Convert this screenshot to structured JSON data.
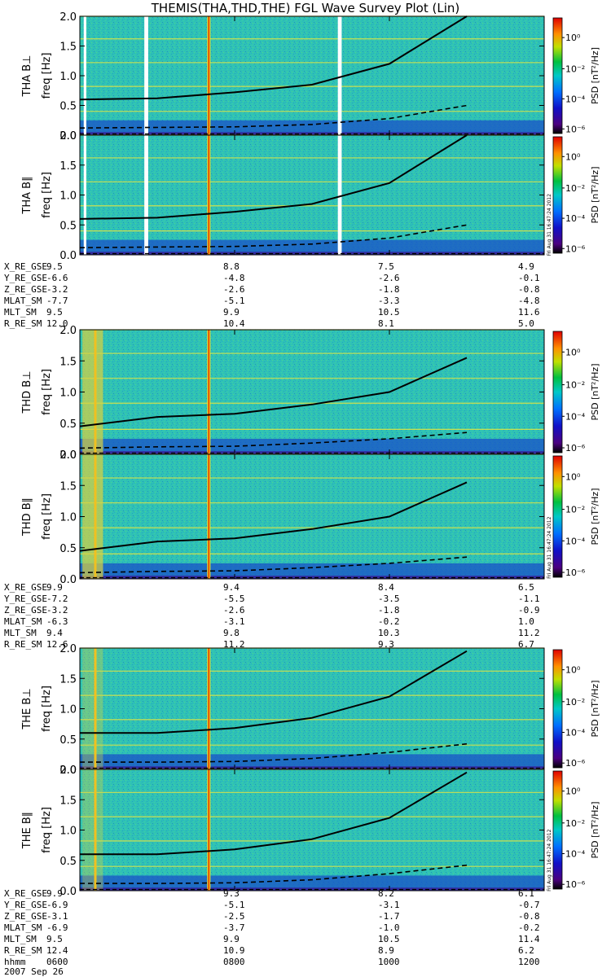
{
  "title": "THEMIS(THA,THD,THE) FGL Wave Survey Plot (Lin)",
  "colorbar": {
    "label": "PSD [nT²/Hz]",
    "ticks": [
      "10⁰",
      "10⁻²",
      "10⁻⁴",
      "10⁻⁶"
    ]
  },
  "freq_label": "freq [Hz]",
  "freq_ticks": [
    "0.0",
    "0.5",
    "1.0",
    "1.5",
    "2.0"
  ],
  "stamp": "Fri Aug 31 16:47:24 2012",
  "time_axis": {
    "label": "hhmm",
    "ticks": [
      "0600",
      "0800",
      "1000",
      "1200"
    ],
    "date": "2007 Sep 26"
  },
  "chart_data": [
    {
      "type": "heatmap",
      "name": "THA B⊥",
      "title": "THA B⊥",
      "ylabel": "freq [Hz]",
      "ylim": [
        0,
        2
      ],
      "x_range_hhmm": [
        "0600",
        "1200"
      ],
      "z_label": "PSD [nT²/Hz]",
      "z_range_log10": [
        -6,
        1
      ],
      "data_gaps_hhmm": [
        [
          "0603",
          "0605"
        ],
        [
          "0650",
          "0653"
        ],
        [
          "0920",
          "0923"
        ]
      ],
      "solid_line": [
        [
          0,
          0.6
        ],
        [
          1,
          0.62
        ],
        [
          2,
          0.72
        ],
        [
          3,
          0.85
        ],
        [
          4,
          1.2
        ],
        [
          5,
          2.0
        ]
      ],
      "dashed_line": [
        [
          0,
          0.12
        ],
        [
          1,
          0.13
        ],
        [
          2,
          0.14
        ],
        [
          3,
          0.18
        ],
        [
          4,
          0.28
        ],
        [
          5,
          0.5
        ]
      ]
    },
    {
      "type": "heatmap",
      "name": "THA B∥",
      "title": "THA B∥",
      "ylabel": "freq [Hz]",
      "ylim": [
        0,
        2
      ],
      "x_range_hhmm": [
        "0600",
        "1200"
      ],
      "z_label": "PSD [nT²/Hz]",
      "z_range_log10": [
        -6,
        1
      ],
      "data_gaps_hhmm": [
        [
          "0603",
          "0605"
        ],
        [
          "0650",
          "0653"
        ],
        [
          "0920",
          "0923"
        ]
      ],
      "solid_line": [
        [
          0,
          0.6
        ],
        [
          1,
          0.62
        ],
        [
          2,
          0.72
        ],
        [
          3,
          0.85
        ],
        [
          4,
          1.2
        ],
        [
          5,
          2.0
        ]
      ],
      "dashed_line": [
        [
          0,
          0.12
        ],
        [
          1,
          0.13
        ],
        [
          2,
          0.14
        ],
        [
          3,
          0.18
        ],
        [
          4,
          0.28
        ],
        [
          5,
          0.5
        ]
      ]
    },
    {
      "type": "heatmap",
      "name": "THD B⊥",
      "title": "THD B⊥",
      "ylabel": "freq [Hz]",
      "ylim": [
        0,
        2
      ],
      "x_range_hhmm": [
        "0600",
        "1200"
      ],
      "z_label": "PSD [nT²/Hz]",
      "z_range_log10": [
        -6,
        1
      ],
      "data_gaps_hhmm": [],
      "solid_line": [
        [
          0,
          0.45
        ],
        [
          1,
          0.6
        ],
        [
          2,
          0.65
        ],
        [
          3,
          0.8
        ],
        [
          4,
          1.0
        ],
        [
          5,
          1.55
        ]
      ],
      "dashed_line": [
        [
          0,
          0.1
        ],
        [
          1,
          0.12
        ],
        [
          2,
          0.13
        ],
        [
          3,
          0.18
        ],
        [
          4,
          0.25
        ],
        [
          5,
          0.35
        ]
      ]
    },
    {
      "type": "heatmap",
      "name": "THD B∥",
      "title": "THD B∥",
      "ylabel": "freq [Hz]",
      "ylim": [
        0,
        2
      ],
      "x_range_hhmm": [
        "0600",
        "1200"
      ],
      "z_label": "PSD [nT²/Hz]",
      "z_range_log10": [
        -6,
        1
      ],
      "data_gaps_hhmm": [],
      "solid_line": [
        [
          0,
          0.45
        ],
        [
          1,
          0.6
        ],
        [
          2,
          0.65
        ],
        [
          3,
          0.8
        ],
        [
          4,
          1.0
        ],
        [
          5,
          1.55
        ]
      ],
      "dashed_line": [
        [
          0,
          0.1
        ],
        [
          1,
          0.12
        ],
        [
          2,
          0.13
        ],
        [
          3,
          0.18
        ],
        [
          4,
          0.25
        ],
        [
          5,
          0.35
        ]
      ]
    },
    {
      "type": "heatmap",
      "name": "THE B⊥",
      "title": "THE B⊥",
      "ylabel": "freq [Hz]",
      "ylim": [
        0,
        2
      ],
      "x_range_hhmm": [
        "0600",
        "1200"
      ],
      "z_label": "PSD [nT²/Hz]",
      "z_range_log10": [
        -6,
        1
      ],
      "data_gaps_hhmm": [],
      "solid_line": [
        [
          0,
          0.6
        ],
        [
          1,
          0.6
        ],
        [
          2,
          0.68
        ],
        [
          3,
          0.85
        ],
        [
          4,
          1.2
        ],
        [
          5,
          1.95
        ]
      ],
      "dashed_line": [
        [
          0,
          0.12
        ],
        [
          1,
          0.12
        ],
        [
          2,
          0.13
        ],
        [
          3,
          0.18
        ],
        [
          4,
          0.28
        ],
        [
          5,
          0.42
        ]
      ]
    },
    {
      "type": "heatmap",
      "name": "THE B∥",
      "title": "THE B∥",
      "ylabel": "freq [Hz]",
      "ylim": [
        0,
        2
      ],
      "x_range_hhmm": [
        "0600",
        "1200"
      ],
      "z_label": "PSD [nT²/Hz]",
      "z_range_log10": [
        -6,
        1
      ],
      "data_gaps_hhmm": [],
      "solid_line": [
        [
          0,
          0.6
        ],
        [
          1,
          0.6
        ],
        [
          2,
          0.68
        ],
        [
          3,
          0.85
        ],
        [
          4,
          1.2
        ],
        [
          5,
          1.95
        ]
      ],
      "dashed_line": [
        [
          0,
          0.12
        ],
        [
          1,
          0.12
        ],
        [
          2,
          0.13
        ],
        [
          3,
          0.18
        ],
        [
          4,
          0.28
        ],
        [
          5,
          0.42
        ]
      ]
    }
  ],
  "ephemeris": [
    {
      "rows": [
        {
          "label": "X_RE_GSE",
          "values": [
            "9.5",
            "8.8",
            "7.5",
            "4.9"
          ]
        },
        {
          "label": "Y_RE_GSE",
          "values": [
            "-6.6",
            "-4.8",
            "-2.6",
            "-0.1"
          ]
        },
        {
          "label": "Z_RE_GSE",
          "values": [
            "-3.2",
            "-2.6",
            "-1.8",
            "-0.8"
          ]
        },
        {
          "label": "MLAT_SM",
          "values": [
            "-7.7",
            "-5.1",
            "-3.3",
            "-4.8"
          ]
        },
        {
          "label": "MLT_SM",
          "values": [
            "9.5",
            "9.9",
            "10.5",
            "11.6"
          ]
        },
        {
          "label": "R_RE_SM",
          "values": [
            "12.0",
            "10.4",
            "8.1",
            "5.0"
          ]
        }
      ]
    },
    {
      "rows": [
        {
          "label": "X_RE_GSE",
          "values": [
            "9.9",
            "9.4",
            "8.4",
            "6.5"
          ]
        },
        {
          "label": "Y_RE_GSE",
          "values": [
            "-7.2",
            "-5.5",
            "-3.5",
            "-1.1"
          ]
        },
        {
          "label": "Z_RE_GSE",
          "values": [
            "-3.2",
            "-2.6",
            "-1.8",
            "-0.9"
          ]
        },
        {
          "label": "MLAT_SM",
          "values": [
            "-6.3",
            "-3.1",
            "-0.2",
            "1.0"
          ]
        },
        {
          "label": "MLT_SM",
          "values": [
            "9.4",
            "9.8",
            "10.3",
            "11.2"
          ]
        },
        {
          "label": "R_RE_SM",
          "values": [
            "12.6",
            "11.2",
            "9.3",
            "6.7"
          ]
        }
      ]
    },
    {
      "rows": [
        {
          "label": "X_RE_GSE",
          "values": [
            "9.9",
            "9.3",
            "8.2",
            "6.1"
          ]
        },
        {
          "label": "Y_RE_GSE",
          "values": [
            "-6.9",
            "-5.1",
            "-3.1",
            "-0.7"
          ]
        },
        {
          "label": "Z_RE_GSE",
          "values": [
            "-3.1",
            "-2.5",
            "-1.7",
            "-0.8"
          ]
        },
        {
          "label": "MLAT_SM",
          "values": [
            "-6.9",
            "-3.7",
            "-1.0",
            "-0.2"
          ]
        },
        {
          "label": "MLT_SM",
          "values": [
            "9.5",
            "9.9",
            "10.5",
            "11.4"
          ]
        },
        {
          "label": "R_RE_SM",
          "values": [
            "12.4",
            "10.9",
            "8.9",
            "6.2"
          ]
        }
      ]
    }
  ]
}
